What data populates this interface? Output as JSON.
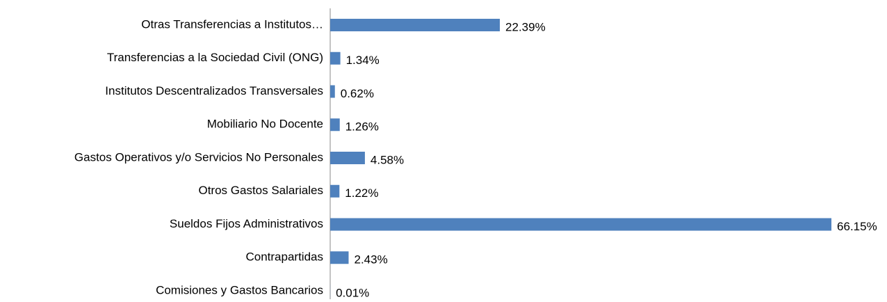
{
  "chart_data": {
    "type": "hbar",
    "categories": [
      "Otras Transferencias a Institutos…",
      "Transferencias a la Sociedad Civil (ONG)",
      "Institutos Descentralizados Transversales",
      "Mobiliario No Docente",
      "Gastos Operativos y/o Servicios No Personales",
      "Otros Gastos Salariales",
      "Sueldos Fijos Administrativos",
      "Contrapartidas",
      "Comisiones y Gastos Bancarios"
    ],
    "values": [
      22.39,
      1.34,
      0.62,
      1.26,
      4.58,
      1.22,
      66.15,
      2.43,
      0.01
    ],
    "value_labels": [
      "22.39%",
      "1.34%",
      "0.62%",
      "1.26%",
      "4.58%",
      "1.22%",
      "66.15%",
      "2.43%",
      "0.01%"
    ],
    "color": "#4f81bd",
    "xlim": [
      0,
      70
    ]
  }
}
